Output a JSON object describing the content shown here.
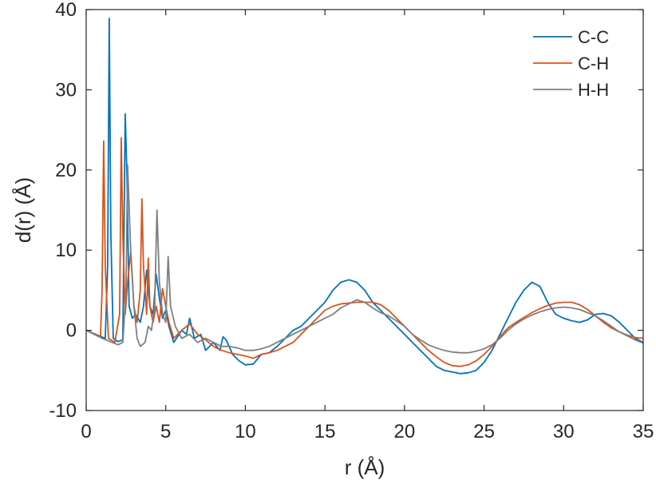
{
  "chart_data": {
    "type": "line",
    "xlabel": "r (Å)",
    "ylabel": "d(r) (Å)",
    "xlim": [
      0,
      35
    ],
    "ylim": [
      -10,
      40
    ],
    "xticks": [
      0,
      5,
      10,
      15,
      20,
      25,
      30,
      35
    ],
    "yticks": [
      -10,
      0,
      10,
      20,
      30,
      40
    ],
    "grid": false,
    "legend_position": "top-right",
    "series": [
      {
        "name": "C-C",
        "color": "#0072BD",
        "x": [
          0,
          1.2,
          1.35,
          1.45,
          1.55,
          1.7,
          2.0,
          2.3,
          2.45,
          2.55,
          2.7,
          2.9,
          3.1,
          3.4,
          3.6,
          3.8,
          4.0,
          4.2,
          4.4,
          4.6,
          4.8,
          5.0,
          5.2,
          5.5,
          6.0,
          6.3,
          6.5,
          6.8,
          7.2,
          7.5,
          8.0,
          8.4,
          8.6,
          8.8,
          9.2,
          9.6,
          10.0,
          10.5,
          11.0,
          11.5,
          12.0,
          12.5,
          13.0,
          13.5,
          14.0,
          14.5,
          15.0,
          15.5,
          16.0,
          16.5,
          17.0,
          17.5,
          18.0,
          18.5,
          19.0,
          19.5,
          20.0,
          20.5,
          21.0,
          21.5,
          22.0,
          22.5,
          23.0,
          23.5,
          24.0,
          24.5,
          25.0,
          25.5,
          26.0,
          26.5,
          27.0,
          27.5,
          28.0,
          28.5,
          29.0,
          29.5,
          30.0,
          30.5,
          31.0,
          31.5,
          32.0,
          32.5,
          33.0,
          33.5,
          34.0,
          34.5,
          35.0
        ],
        "values": [
          0,
          -1.0,
          8.0,
          38.9,
          12.0,
          -1.0,
          -1.4,
          -1.2,
          27.0,
          20.0,
          3.0,
          1.5,
          2.0,
          1.0,
          3.0,
          7.5,
          3.0,
          2.0,
          7.0,
          4.0,
          1.5,
          2.5,
          0.5,
          -1.5,
          0.0,
          -0.5,
          1.5,
          -1.0,
          -0.5,
          -2.5,
          -1.5,
          -2.5,
          -0.8,
          -1.2,
          -3.0,
          -3.8,
          -4.3,
          -4.2,
          -3.0,
          -2.8,
          -2.0,
          -1.0,
          0.0,
          0.5,
          1.5,
          2.5,
          3.5,
          5.0,
          6.0,
          6.3,
          6.0,
          5.0,
          3.5,
          2.5,
          1.5,
          0.5,
          -0.5,
          -1.5,
          -2.5,
          -3.5,
          -4.5,
          -5.0,
          -5.2,
          -5.4,
          -5.3,
          -5.0,
          -4.0,
          -2.5,
          -0.5,
          1.5,
          3.5,
          5.0,
          6.0,
          5.5,
          3.5,
          2.0,
          1.5,
          1.2,
          1.0,
          1.3,
          2.0,
          2.1,
          1.8,
          1.0,
          0.0,
          -1.0,
          -1.5
        ]
      },
      {
        "name": "C-H",
        "color": "#D95319",
        "x": [
          0,
          0.9,
          1.0,
          1.1,
          1.2,
          1.4,
          1.8,
          2.1,
          2.2,
          2.3,
          2.45,
          2.6,
          2.8,
          3.0,
          3.2,
          3.4,
          3.5,
          3.6,
          3.8,
          3.9,
          4.0,
          4.2,
          4.4,
          4.6,
          4.8,
          5.0,
          5.2,
          5.5,
          6.0,
          6.5,
          7.0,
          7.5,
          8.0,
          8.5,
          9.0,
          9.5,
          10.0,
          10.5,
          11.0,
          11.5,
          12.0,
          12.5,
          13.0,
          13.5,
          14.0,
          14.5,
          15.0,
          15.5,
          16.0,
          16.5,
          17.0,
          17.5,
          18.0,
          18.5,
          19.0,
          19.5,
          20.0,
          20.5,
          21.0,
          21.5,
          22.0,
          22.5,
          23.0,
          23.5,
          24.0,
          24.5,
          25.0,
          25.5,
          26.0,
          26.5,
          27.0,
          27.5,
          28.0,
          28.5,
          29.0,
          29.5,
          30.0,
          30.5,
          31.0,
          31.5,
          32.0,
          32.5,
          33.0,
          33.5,
          34.0,
          34.5,
          35.0
        ],
        "values": [
          0,
          -0.8,
          5.0,
          23.6,
          8.0,
          -1.0,
          -1.5,
          2.0,
          24.0,
          12.0,
          2.0,
          6.0,
          9.8,
          3.0,
          1.0,
          5.0,
          16.4,
          8.0,
          2.0,
          9.0,
          3.0,
          1.0,
          3.0,
          1.0,
          5.2,
          3.0,
          1.0,
          -1.0,
          0.0,
          0.8,
          -0.5,
          -1.2,
          -2.0,
          -2.5,
          -2.8,
          -3.0,
          -3.2,
          -3.5,
          -3.0,
          -2.8,
          -2.5,
          -2.0,
          -1.5,
          -0.5,
          0.5,
          1.5,
          2.5,
          3.0,
          3.3,
          3.4,
          3.5,
          3.5,
          3.5,
          3.2,
          2.5,
          1.5,
          0.5,
          -0.5,
          -1.5,
          -2.5,
          -3.3,
          -4.0,
          -4.4,
          -4.5,
          -4.3,
          -3.8,
          -3.0,
          -2.0,
          -0.8,
          0.3,
          1.0,
          1.6,
          2.2,
          2.7,
          3.1,
          3.4,
          3.5,
          3.5,
          3.2,
          2.6,
          1.8,
          1.0,
          0.3,
          -0.2,
          -0.6,
          -0.9,
          -1.0
        ]
      },
      {
        "name": "H-H",
        "color": "#7F7F7F",
        "x": [
          0,
          1.0,
          2.0,
          2.3,
          2.5,
          2.6,
          2.8,
          3.0,
          3.2,
          3.4,
          3.7,
          3.9,
          4.1,
          4.3,
          4.45,
          4.6,
          4.8,
          5.0,
          5.15,
          5.3,
          5.6,
          6.0,
          6.5,
          7.0,
          7.5,
          8.0,
          8.5,
          9.0,
          9.5,
          10.0,
          10.5,
          11.0,
          11.5,
          12.0,
          12.5,
          13.0,
          13.5,
          14.0,
          14.5,
          15.0,
          15.5,
          16.0,
          16.5,
          17.0,
          17.5,
          18.0,
          18.5,
          19.0,
          19.5,
          20.0,
          20.5,
          21.0,
          21.5,
          22.0,
          22.5,
          23.0,
          23.5,
          24.0,
          24.5,
          25.0,
          25.5,
          26.0,
          26.5,
          27.0,
          27.5,
          28.0,
          28.5,
          29.0,
          29.5,
          30.0,
          30.5,
          31.0,
          31.5,
          32.0,
          32.5,
          33.0,
          33.5,
          34.0,
          34.5,
          35.0
        ],
        "values": [
          0,
          -1.0,
          -1.8,
          -1.5,
          5.0,
          20.6,
          10.0,
          3.0,
          -1.0,
          -2.0,
          -1.5,
          0.5,
          0.0,
          3.0,
          15.0,
          6.0,
          2.0,
          1.0,
          9.2,
          3.0,
          0.5,
          -1.0,
          -0.5,
          -1.5,
          -1.0,
          -1.5,
          -2.0,
          -2.0,
          -2.2,
          -2.5,
          -2.5,
          -2.3,
          -2.0,
          -1.5,
          -1.0,
          -0.5,
          0.0,
          0.5,
          1.0,
          1.5,
          2.0,
          2.8,
          3.3,
          3.8,
          3.5,
          2.8,
          2.2,
          1.8,
          1.2,
          0.5,
          -0.5,
          -1.2,
          -1.8,
          -2.2,
          -2.5,
          -2.7,
          -2.8,
          -2.8,
          -2.6,
          -2.3,
          -1.8,
          -1.0,
          0.0,
          0.8,
          1.4,
          1.9,
          2.3,
          2.6,
          2.8,
          2.9,
          2.8,
          2.6,
          2.2,
          1.8,
          1.2,
          0.5,
          -0.2,
          -0.7,
          -1.2,
          -1.6
        ]
      }
    ]
  }
}
